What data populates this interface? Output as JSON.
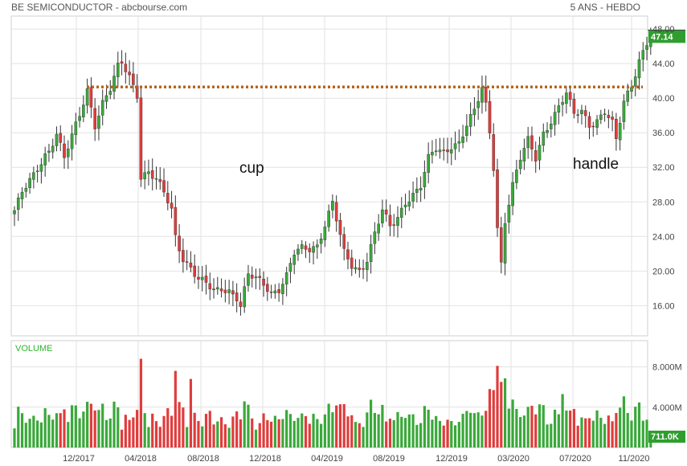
{
  "header": {
    "title": "BE SEMICONDUCTOR - abcbourse.com",
    "period": "5 ANS - HEBDO"
  },
  "colors": {
    "up": "#3aa83a",
    "down": "#e03c3c",
    "resistance": "#b5651d",
    "grid": "#e2e2e2",
    "badge": "#2f9e2f"
  },
  "chart_data": [
    {
      "type": "candlestick",
      "price_axis": {
        "ticks": [
          "16.00",
          "20.00",
          "24.00",
          "28.00",
          "32.00",
          "36.00",
          "40.00",
          "44.00",
          "48.00"
        ],
        "range": [
          12.5,
          49.5
        ]
      },
      "date_axis": {
        "ticks": [
          "12/2017",
          "04/2018",
          "08/2018",
          "12/2018",
          "04/2019",
          "08/2019",
          "12/2019",
          "03/2020",
          "07/2020",
          "11/2020"
        ]
      },
      "last_price": "47.14",
      "resistance_level": 41.3,
      "annotations": [
        "cup",
        "handle"
      ],
      "series_path": [
        [
          0,
          27.0
        ],
        [
          2,
          29.0
        ],
        [
          5,
          31.0
        ],
        [
          8,
          33.5
        ],
        [
          9,
          34.0
        ],
        [
          11,
          36.0
        ],
        [
          13,
          33.0
        ],
        [
          15,
          35.5
        ],
        [
          17,
          38.0
        ],
        [
          19,
          41.0
        ],
        [
          21,
          37.0
        ],
        [
          23,
          39.5
        ],
        [
          25,
          41.0
        ],
        [
          27,
          43.5
        ],
        [
          28,
          44.0
        ],
        [
          30,
          42.5
        ],
        [
          32,
          40.5
        ],
        [
          33,
          31.0
        ],
        [
          35,
          31.5
        ],
        [
          37,
          30.5
        ],
        [
          39,
          29.0
        ],
        [
          41,
          27.0
        ],
        [
          42,
          24.0
        ],
        [
          44,
          21.5
        ],
        [
          46,
          20.5
        ],
        [
          48,
          19.0
        ],
        [
          50,
          18.5
        ],
        [
          52,
          17.5
        ],
        [
          54,
          18.0
        ],
        [
          56,
          17.8
        ],
        [
          58,
          17.0
        ],
        [
          59,
          16.0
        ],
        [
          61,
          19.5
        ],
        [
          63,
          19.0
        ],
        [
          65,
          18.5
        ],
        [
          67,
          17.5
        ],
        [
          69,
          18.0
        ],
        [
          71,
          19.5
        ],
        [
          73,
          22.0
        ],
        [
          75,
          22.5
        ],
        [
          77,
          22.5
        ],
        [
          79,
          23.0
        ],
        [
          81,
          25.5
        ],
        [
          83,
          28.0
        ],
        [
          84,
          26.0
        ],
        [
          86,
          22.0
        ],
        [
          88,
          20.5
        ],
        [
          90,
          20.0
        ],
        [
          92,
          21.5
        ],
        [
          94,
          24.5
        ],
        [
          96,
          27.0
        ],
        [
          98,
          25.0
        ],
        [
          100,
          26.0
        ],
        [
          102,
          28.0
        ],
        [
          104,
          29.0
        ],
        [
          106,
          30.0
        ],
        [
          108,
          33.0
        ],
        [
          110,
          34.0
        ],
        [
          112,
          33.5
        ],
        [
          114,
          34.5
        ],
        [
          116,
          35.0
        ],
        [
          118,
          37.0
        ],
        [
          120,
          38.5
        ],
        [
          122,
          41.0
        ],
        [
          123,
          39.0
        ],
        [
          124,
          36.0
        ],
        [
          125,
          32.0
        ],
        [
          126,
          25.0
        ],
        [
          127,
          21.0
        ],
        [
          128,
          26.0
        ],
        [
          130,
          30.0
        ],
        [
          132,
          33.0
        ],
        [
          134,
          35.0
        ],
        [
          136,
          33.0
        ],
        [
          138,
          36.0
        ],
        [
          140,
          37.5
        ],
        [
          142,
          39.0
        ],
        [
          144,
          40.5
        ],
        [
          146,
          38.0
        ],
        [
          148,
          38.5
        ],
        [
          150,
          37.0
        ],
        [
          152,
          37.5
        ],
        [
          154,
          38.5
        ],
        [
          156,
          37.0
        ],
        [
          157,
          35.0
        ],
        [
          159,
          39.5
        ],
        [
          161,
          41.5
        ],
        [
          163,
          44.5
        ],
        [
          165,
          46.5
        ],
        [
          166,
          47.14
        ]
      ],
      "volume": {
        "label": "VOLUME",
        "ticks": [
          "4.000M",
          "8.000M"
        ],
        "last": "711.0K"
      }
    }
  ]
}
